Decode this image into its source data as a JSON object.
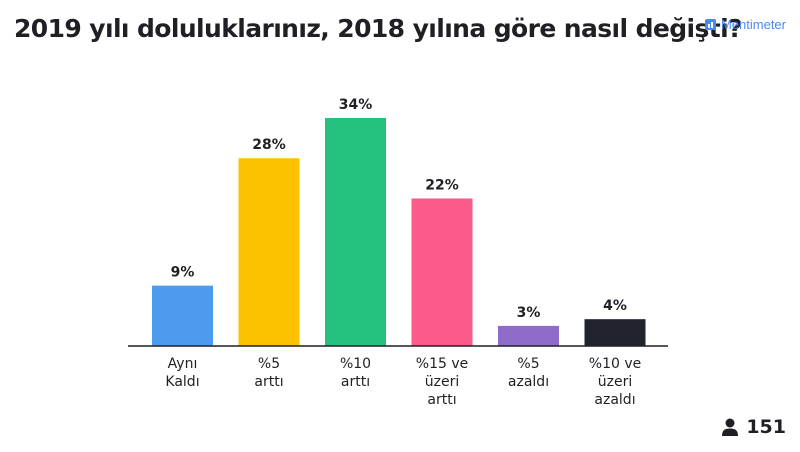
{
  "brand": {
    "name": "Mentimeter",
    "icon": "mentimeter-logo-icon"
  },
  "participants": {
    "count": "151",
    "icon": "person-icon"
  },
  "chart_data": {
    "type": "bar",
    "title": "2019 yılı doluluklarınız, 2018 yılına göre nasıl değişti?",
    "categories": [
      [
        "Aynı",
        "Kaldı"
      ],
      [
        "%5",
        "arttı"
      ],
      [
        "%10",
        "arttı"
      ],
      [
        "%15 ve",
        "üzeri",
        "arttı"
      ],
      [
        "%5",
        "azaldı"
      ],
      [
        "%10 ve",
        "üzeri",
        "azaldı"
      ]
    ],
    "values": [
      9,
      28,
      34,
      22,
      3,
      4
    ],
    "value_labels": [
      "9%",
      "28%",
      "34%",
      "22%",
      "3%",
      "4%"
    ],
    "colors": [
      "#4d9bef",
      "#fdc100",
      "#24c27e",
      "#fb5a8b",
      "#8e6cc9",
      "#22242d"
    ],
    "ylim": [
      0,
      34
    ]
  }
}
